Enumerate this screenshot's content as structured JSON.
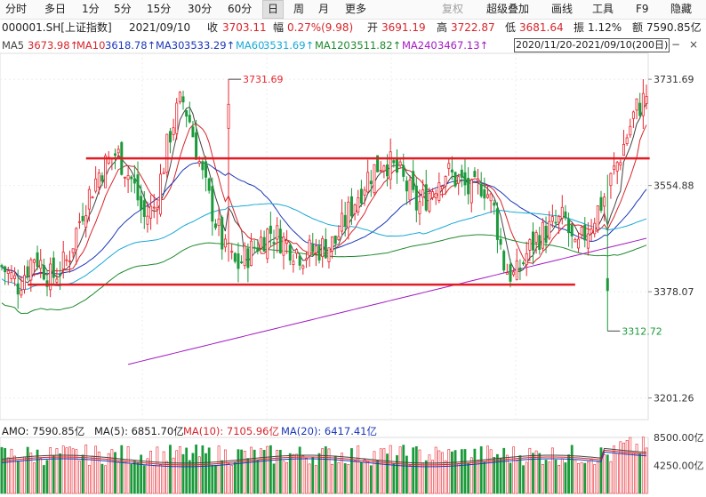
{
  "toolbar": {
    "items": [
      "分时",
      "多日",
      "1分",
      "5分",
      "15分",
      "30分",
      "60分",
      "日",
      "周",
      "月",
      "更多"
    ],
    "active": "日",
    "right_items": [
      "复权",
      "超级叠加",
      "画线",
      "工具",
      "F9",
      "隐藏"
    ]
  },
  "info": {
    "code": "000001.SH[上证指数]",
    "date": "2021/09/10",
    "close_label": "收",
    "close": "3703.11",
    "change_label": "幅",
    "change": "0.27%(9.98)",
    "open_label": "开",
    "open": "3691.19",
    "high_label": "高",
    "high": "3722.87",
    "low_label": "低",
    "low": "3681.64",
    "amp_label": "振",
    "amp": "1.12%",
    "amount_label": "额",
    "amount": "7590.85亿"
  },
  "ma": {
    "ma5": "MA5",
    "ma5_val": "3673.98↑",
    "ma10": "MA10",
    "ma10_val": "3618.78↑",
    "ma30": "MA30",
    "ma30_val": "3533.29↑",
    "ma60": "MA60",
    "ma60_val": "3531.69↑",
    "ma120": "MA120",
    "ma120_val": "3511.82↑",
    "ma240": "MA240",
    "ma240_val": "3467.13↑",
    "range": "2020/11/20-2021/09/10(200日)"
  },
  "axis": {
    "y_ticks": [
      "3731.69",
      "3554.88",
      "3378.07",
      "3201.26"
    ],
    "vol_ticks": [
      "8500.00亿",
      "4250.00亿"
    ]
  },
  "annotations": {
    "high_label": "3731.69",
    "low_label": "3312.72"
  },
  "volume": {
    "amo": "AMO: 7590.85亿",
    "ma5": "MA(5): 6851.70亿",
    "ma10": "MA(10): 7105.96亿",
    "ma20": "MA(20): 6417.41亿"
  },
  "colors": {
    "up": "#e8262e",
    "down": "#1a9a3a",
    "ma5": "#444444",
    "ma10": "#d7252b",
    "ma30": "#1b38b8",
    "ma60": "#19a9d6",
    "ma120": "#1e8a2d",
    "ma240": "#a21ac2",
    "range_border": "#555555",
    "hline": "#e11c24"
  },
  "chart_data": {
    "type": "candlestick",
    "symbol": "000001.SH",
    "period": "2020/11/20-2021/09/10",
    "bars": 200,
    "ylim": [
      3180,
      3760
    ],
    "price_high": 3731.69,
    "price_low": 3312.72,
    "last": {
      "date": "2021/09/10",
      "open": 3691.19,
      "high": 3722.87,
      "low": 3681.64,
      "close": 3703.11,
      "amount_yi": 7590.85
    },
    "resistance": 3600,
    "support": 3390,
    "volume_ylim": [
      0,
      8500
    ]
  }
}
